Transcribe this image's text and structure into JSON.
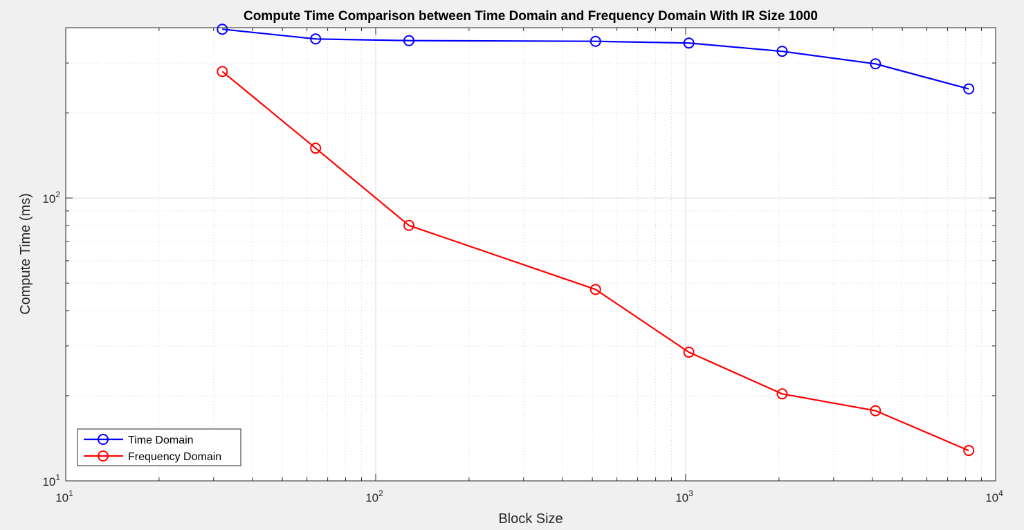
{
  "chart_data": {
    "type": "line",
    "title": "Compute Time Comparison between Time Domain and Frequency Domain With IR Size 1000",
    "xlabel": "Block Size",
    "ylabel": "Compute Time (ms)",
    "xscale": "log",
    "yscale": "log",
    "xlim": [
      10,
      10000
    ],
    "ylim": [
      10,
      400
    ],
    "grid": true,
    "minor_grid": true,
    "legend_position": "bottom-left",
    "x_tick_labels": [
      {
        "value": 10,
        "base": "10",
        "exp": "1"
      },
      {
        "value": 100,
        "base": "10",
        "exp": "2"
      },
      {
        "value": 1000,
        "base": "10",
        "exp": "3"
      },
      {
        "value": 10000,
        "base": "10",
        "exp": "4"
      }
    ],
    "y_tick_labels": [
      {
        "value": 10,
        "base": "10",
        "exp": "1"
      },
      {
        "value": 100,
        "base": "10",
        "exp": "2"
      }
    ],
    "x": [
      32,
      64,
      128,
      512,
      1024,
      2048,
      4096,
      8192
    ],
    "series": [
      {
        "name": "Time Domain",
        "color": "#0000ff",
        "marker": "circle",
        "values": [
          395,
          365,
          360,
          358,
          353,
          330,
          298,
          243
        ]
      },
      {
        "name": "Frequency Domain",
        "color": "#ff0000",
        "marker": "circle",
        "values": [
          280,
          150,
          80,
          47.5,
          28.5,
          20.3,
          17.7,
          12.8
        ]
      }
    ]
  }
}
